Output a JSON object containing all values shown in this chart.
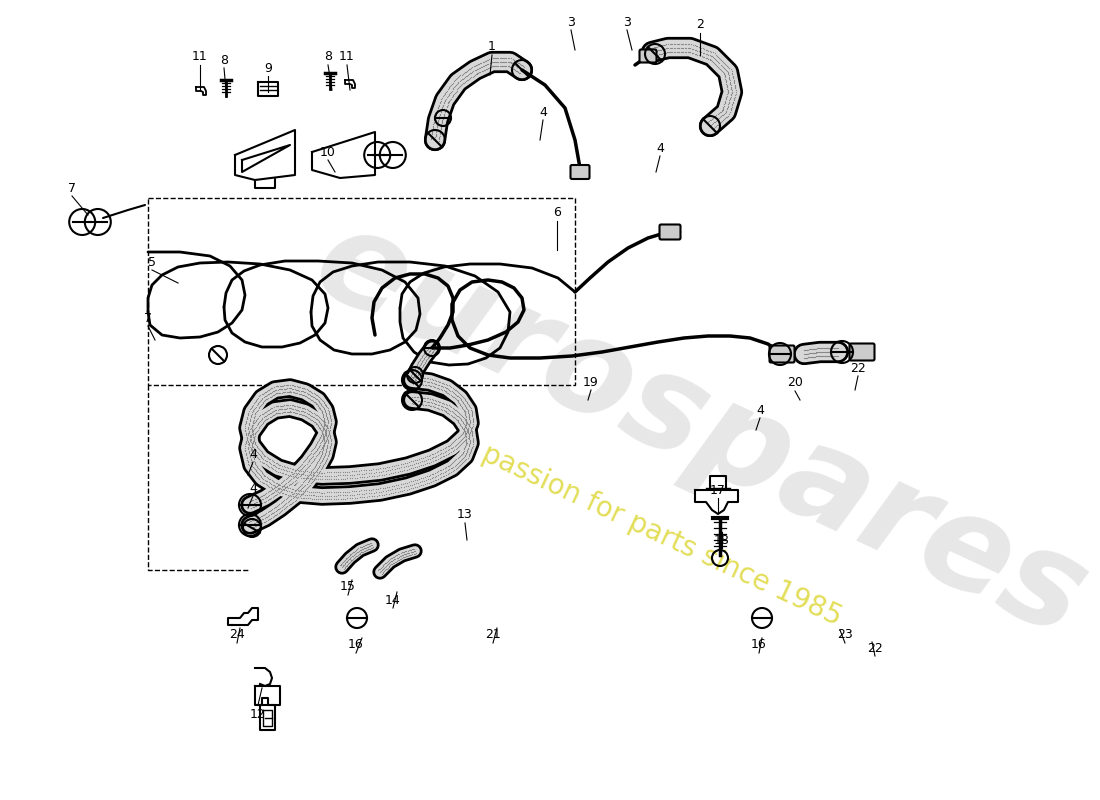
{
  "bg_color": "#ffffff",
  "lc": "#1a1a1a",
  "wm1": "eurospares",
  "wm2": "a passion for parts since 1985",
  "wm1_color": "#c0c0c0",
  "wm2_color": "#d4cc00",
  "wm1_alpha": 0.38,
  "wm2_alpha": 0.65,
  "figw": 11.0,
  "figh": 8.0,
  "dpi": 100,
  "xmax": 1100,
  "ymax": 800,
  "labels": [
    [
      "1",
      492,
      47
    ],
    [
      "2",
      700,
      25
    ],
    [
      "3",
      571,
      22
    ],
    [
      "3",
      627,
      22
    ],
    [
      "4",
      543,
      112
    ],
    [
      "4",
      660,
      148
    ],
    [
      "4",
      760,
      410
    ],
    [
      "4",
      253,
      455
    ],
    [
      "4",
      253,
      488
    ],
    [
      "5",
      152,
      263
    ],
    [
      "6",
      557,
      213
    ],
    [
      "7",
      72,
      188
    ],
    [
      "7",
      148,
      318
    ],
    [
      "8",
      224,
      60
    ],
    [
      "8",
      328,
      57
    ],
    [
      "9",
      268,
      68
    ],
    [
      "10",
      328,
      152
    ],
    [
      "11",
      200,
      57
    ],
    [
      "11",
      347,
      57
    ],
    [
      "12",
      258,
      715
    ],
    [
      "13",
      465,
      515
    ],
    [
      "14",
      393,
      600
    ],
    [
      "15",
      348,
      587
    ],
    [
      "16",
      356,
      645
    ],
    [
      "16",
      759,
      645
    ],
    [
      "17",
      718,
      490
    ],
    [
      "18",
      722,
      540
    ],
    [
      "19",
      591,
      382
    ],
    [
      "20",
      795,
      383
    ],
    [
      "21",
      493,
      635
    ],
    [
      "22",
      858,
      368
    ],
    [
      "22",
      875,
      648
    ],
    [
      "23",
      845,
      635
    ],
    [
      "24",
      237,
      635
    ]
  ],
  "leader_lines": [
    [
      492,
      55,
      490,
      75
    ],
    [
      700,
      33,
      700,
      55
    ],
    [
      571,
      30,
      575,
      50
    ],
    [
      627,
      30,
      632,
      50
    ],
    [
      543,
      120,
      540,
      140
    ],
    [
      660,
      156,
      656,
      172
    ],
    [
      760,
      418,
      756,
      430
    ],
    [
      253,
      462,
      248,
      475
    ],
    [
      253,
      496,
      248,
      508
    ],
    [
      152,
      270,
      178,
      283
    ],
    [
      557,
      221,
      557,
      250
    ],
    [
      72,
      196,
      88,
      215
    ],
    [
      148,
      326,
      155,
      340
    ],
    [
      224,
      68,
      226,
      90
    ],
    [
      328,
      65,
      332,
      90
    ],
    [
      268,
      76,
      268,
      92
    ],
    [
      328,
      160,
      335,
      172
    ],
    [
      200,
      65,
      200,
      90
    ],
    [
      347,
      65,
      350,
      90
    ],
    [
      258,
      705,
      262,
      688
    ],
    [
      465,
      523,
      467,
      540
    ],
    [
      393,
      608,
      397,
      592
    ],
    [
      348,
      595,
      352,
      580
    ],
    [
      356,
      653,
      362,
      638
    ],
    [
      759,
      653,
      762,
      638
    ],
    [
      718,
      498,
      718,
      512
    ],
    [
      722,
      548,
      722,
      532
    ],
    [
      591,
      390,
      588,
      400
    ],
    [
      795,
      391,
      800,
      400
    ],
    [
      493,
      643,
      497,
      628
    ],
    [
      858,
      376,
      855,
      390
    ],
    [
      875,
      656,
      872,
      642
    ],
    [
      845,
      643,
      840,
      630
    ],
    [
      237,
      643,
      240,
      628
    ]
  ]
}
